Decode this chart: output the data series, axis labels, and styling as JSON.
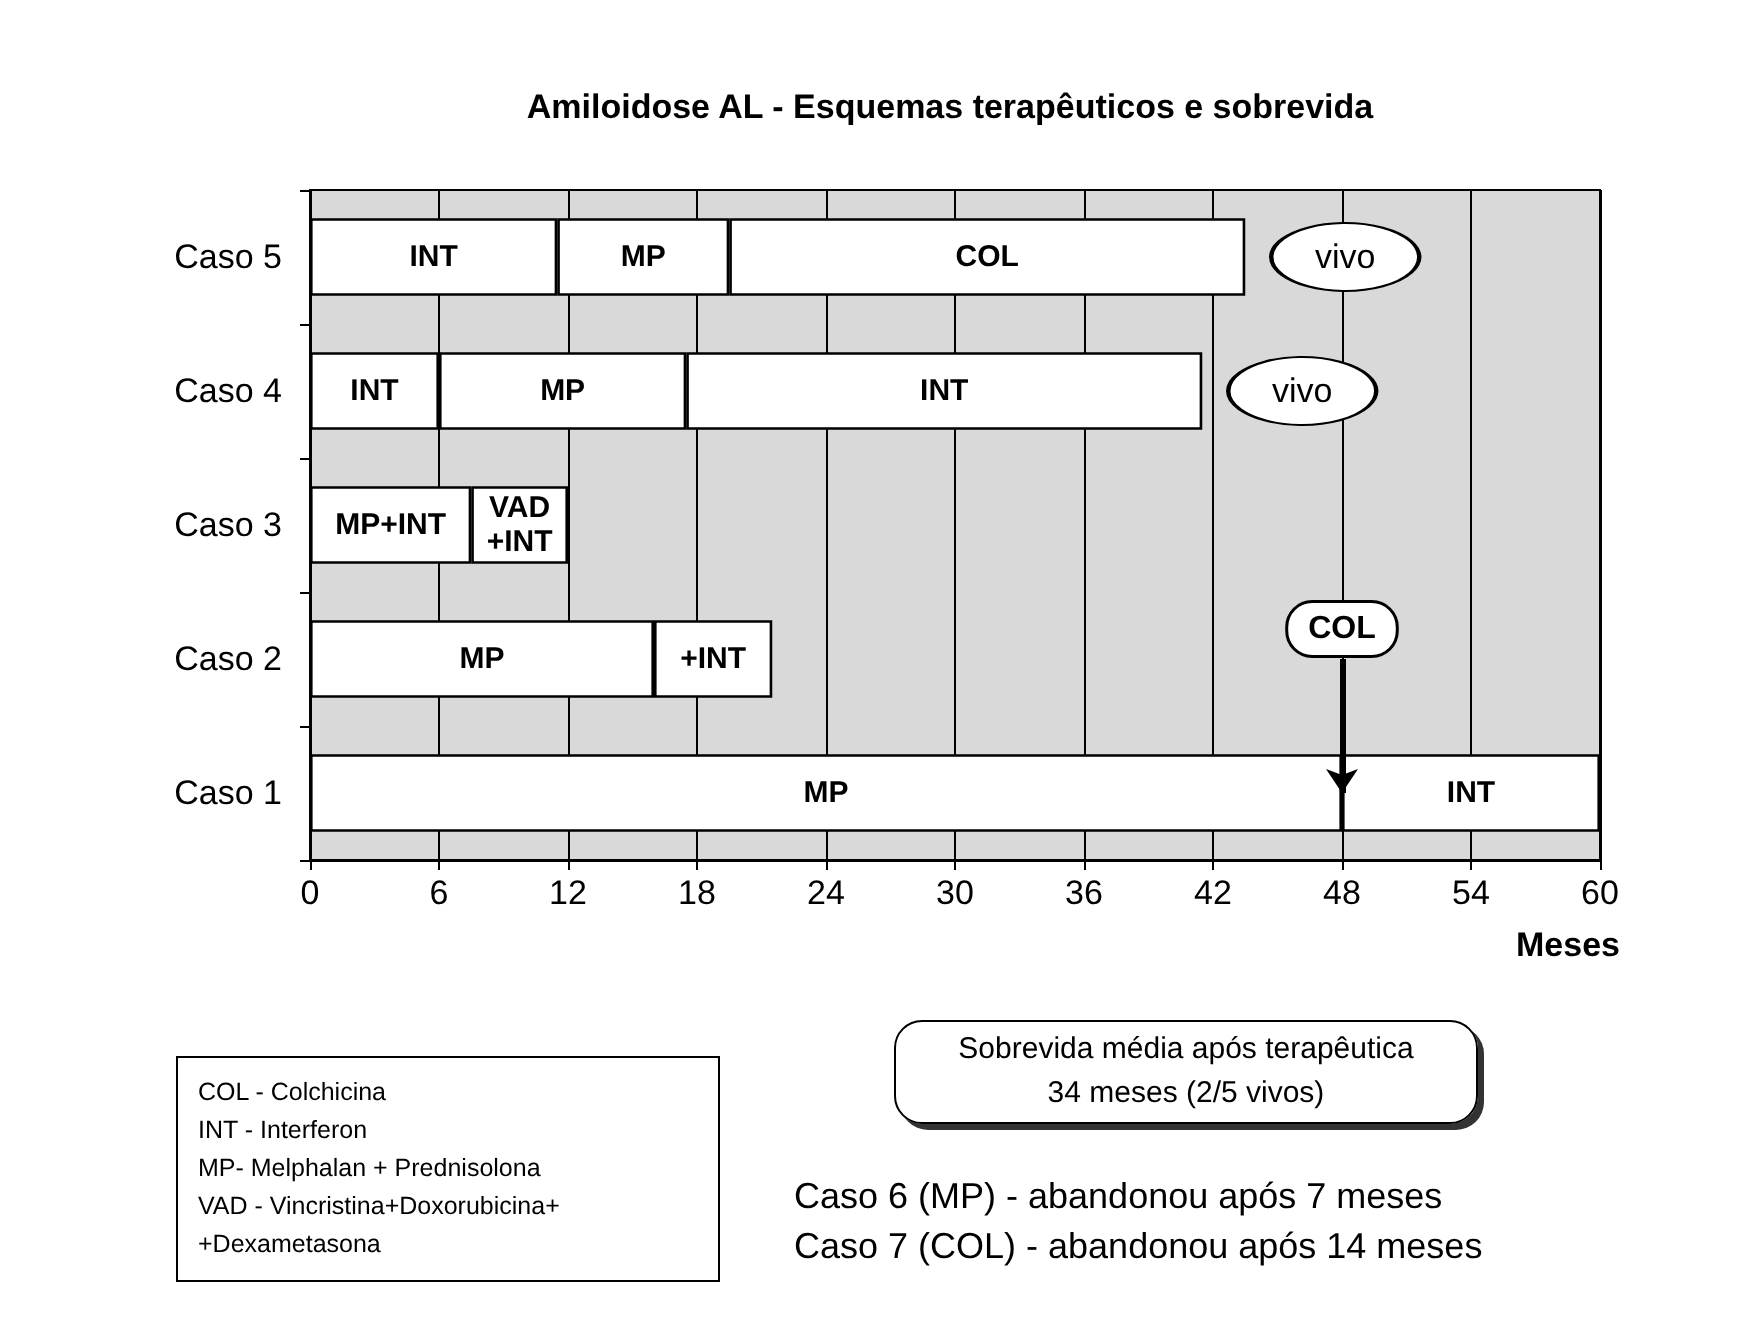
{
  "chart_data": {
    "type": "bar",
    "orientation": "horizontal",
    "stacked": true,
    "title": "Amiloidose AL - Esquemas terapêuticos e sobrevida",
    "xlabel": "Meses",
    "categories": [
      "Caso 5",
      "Caso 4",
      "Caso 3",
      "Caso 2",
      "Caso 1"
    ],
    "series": [
      {
        "color": "#ffffff",
        "values": [
          11.5,
          6,
          7.5,
          16,
          48
        ],
        "value_labels": [
          "INT",
          "INT",
          "MP+INT",
          "MP",
          "MP"
        ]
      },
      {
        "color": "#ffffff",
        "values": [
          8,
          11.5,
          4.5,
          5.5,
          12
        ],
        "value_labels": [
          "MP",
          "MP",
          "VAD\n+INT",
          "+INT",
          "INT"
        ]
      },
      {
        "color": "#ffffff",
        "values": [
          24,
          24,
          null,
          null,
          null
        ],
        "value_labels": [
          "COL",
          "INT",
          null,
          null,
          null
        ]
      }
    ],
    "xlim": [
      0,
      60
    ],
    "xticks": [
      0,
      6,
      12,
      18,
      24,
      30,
      36,
      42,
      48,
      54,
      60
    ],
    "grid": "x",
    "annotations": [
      {
        "text": "vivo",
        "x": 43.5,
        "y": "Caso 5"
      },
      {
        "text": "vivo",
        "x": 41.5,
        "y": "Caso 4"
      },
      {
        "text": "COL",
        "x": 48,
        "y": "Caso 1"
      },
      "COL - Colchicina",
      "INT - Interferon",
      "MP- Melphalan + Prednisolona",
      "VAD - Vincristina+Doxorubicina+\n+Dexametasona",
      "Sobrevida média após terapêutica\n34 meses (2/5 vivos)",
      "Caso 6 (MP) - abandonou após 7 meses",
      "Caso 7 (COL) - abandonou após 14 meses"
    ]
  }
}
